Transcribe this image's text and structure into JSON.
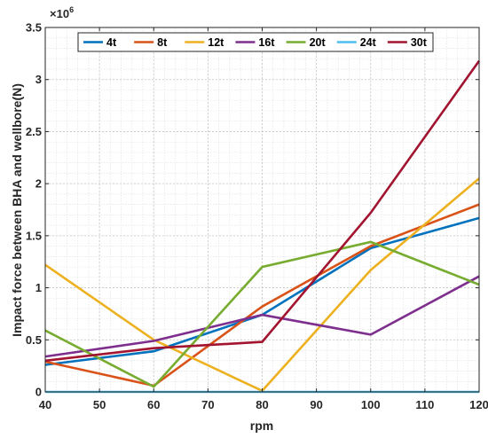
{
  "chart_data": {
    "type": "line",
    "xlabel": "rpm",
    "ylabel": "Impact force between BHA and wellbore(N)",
    "y_exponent_label": "×10",
    "y_exponent_power": "6",
    "x": [
      40,
      60,
      80,
      100,
      120
    ],
    "xlim": [
      40,
      120
    ],
    "ylim": [
      0,
      3.5
    ],
    "x_ticks": [
      "40",
      "50",
      "60",
      "70",
      "80",
      "90",
      "100",
      "110",
      "120"
    ],
    "y_ticks": [
      "0",
      "0.5",
      "1",
      "1.5",
      "2",
      "2.5",
      "3",
      "3.5"
    ],
    "grid": true,
    "minor_grid": true,
    "legend_position": "top",
    "series": [
      {
        "name": "4t",
        "color": "#0072BD",
        "values": [
          0.26,
          0.39,
          0.74,
          1.38,
          1.67
        ]
      },
      {
        "name": "8t",
        "color": "#D95319",
        "values": [
          0.29,
          0.06,
          0.82,
          1.4,
          1.8
        ]
      },
      {
        "name": "12t",
        "color": "#EDB120",
        "values": [
          1.22,
          0.5,
          0.01,
          1.17,
          2.05
        ]
      },
      {
        "name": "16t",
        "color": "#7E2F8E",
        "values": [
          0.34,
          0.49,
          0.74,
          0.55,
          1.11
        ]
      },
      {
        "name": "20t",
        "color": "#77AC30",
        "values": [
          0.59,
          0.05,
          1.2,
          1.44,
          1.03
        ]
      },
      {
        "name": "24t",
        "color": "#4DBEEE",
        "values": [
          0.0,
          0.0,
          0.0,
          0.0,
          0.0
        ]
      },
      {
        "name": "30t",
        "color": "#A2142F",
        "values": [
          0.3,
          0.42,
          0.48,
          1.72,
          3.18
        ]
      }
    ]
  }
}
